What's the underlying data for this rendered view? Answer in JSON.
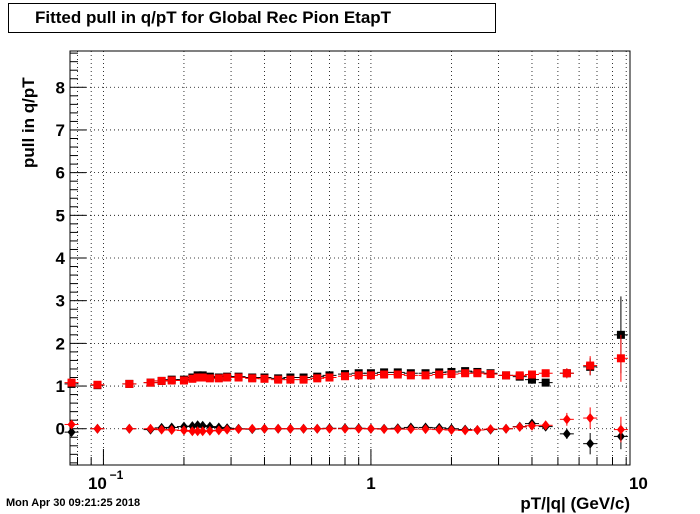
{
  "chart_data": {
    "type": "scatter",
    "title": "Fitted pull in q/pT for Global Rec Pion EtapT",
    "xlabel": "pT/|q| (GeV/c)",
    "ylabel": "pull in q/pT",
    "xscale": "log",
    "xlim": [
      0.075,
      9.3
    ],
    "ylim": [
      -0.85,
      8.85
    ],
    "x_ticks": [
      {
        "value": 0.1,
        "label": "10",
        "exp": "−1"
      },
      {
        "value": 1,
        "label": "1"
      },
      {
        "value": 10,
        "label": "10"
      }
    ],
    "y_ticks": [
      0,
      1,
      2,
      3,
      4,
      5,
      6,
      7,
      8
    ],
    "grid": true,
    "series": [
      {
        "marker": "square",
        "color": "#000000",
        "points": [
          {
            "x": 0.076,
            "y": 1.05,
            "err": 0.05
          },
          {
            "x": 0.095,
            "y": 1.02,
            "err": 0.04
          },
          {
            "x": 0.125,
            "y": 1.05,
            "err": 0.03
          },
          {
            "x": 0.15,
            "y": 1.08,
            "err": 0.03
          },
          {
            "x": 0.165,
            "y": 1.12,
            "err": 0.03
          },
          {
            "x": 0.18,
            "y": 1.15,
            "err": 0.03
          },
          {
            "x": 0.2,
            "y": 1.15,
            "err": 0.02
          },
          {
            "x": 0.215,
            "y": 1.2,
            "err": 0.02
          },
          {
            "x": 0.225,
            "y": 1.25,
            "err": 0.02
          },
          {
            "x": 0.235,
            "y": 1.25,
            "err": 0.02
          },
          {
            "x": 0.25,
            "y": 1.22,
            "err": 0.02
          },
          {
            "x": 0.27,
            "y": 1.2,
            "err": 0.02
          },
          {
            "x": 0.29,
            "y": 1.22,
            "err": 0.02
          },
          {
            "x": 0.32,
            "y": 1.22,
            "err": 0.02
          },
          {
            "x": 0.36,
            "y": 1.2,
            "err": 0.02
          },
          {
            "x": 0.4,
            "y": 1.2,
            "err": 0.02
          },
          {
            "x": 0.45,
            "y": 1.18,
            "err": 0.02
          },
          {
            "x": 0.5,
            "y": 1.2,
            "err": 0.02
          },
          {
            "x": 0.56,
            "y": 1.2,
            "err": 0.02
          },
          {
            "x": 0.63,
            "y": 1.22,
            "err": 0.02
          },
          {
            "x": 0.7,
            "y": 1.25,
            "err": 0.02
          },
          {
            "x": 0.8,
            "y": 1.28,
            "err": 0.02
          },
          {
            "x": 0.9,
            "y": 1.3,
            "err": 0.02
          },
          {
            "x": 1.0,
            "y": 1.3,
            "err": 0.02
          },
          {
            "x": 1.12,
            "y": 1.32,
            "err": 0.02
          },
          {
            "x": 1.26,
            "y": 1.32,
            "err": 0.02
          },
          {
            "x": 1.41,
            "y": 1.3,
            "err": 0.02
          },
          {
            "x": 1.6,
            "y": 1.3,
            "err": 0.02
          },
          {
            "x": 1.8,
            "y": 1.32,
            "err": 0.02
          },
          {
            "x": 2.0,
            "y": 1.33,
            "err": 0.03
          },
          {
            "x": 2.25,
            "y": 1.35,
            "err": 0.03
          },
          {
            "x": 2.5,
            "y": 1.33,
            "err": 0.03
          },
          {
            "x": 2.8,
            "y": 1.3,
            "err": 0.04
          },
          {
            "x": 3.2,
            "y": 1.25,
            "err": 0.05
          },
          {
            "x": 3.6,
            "y": 1.22,
            "err": 0.06
          },
          {
            "x": 4.0,
            "y": 1.15,
            "err": 0.07
          },
          {
            "x": 4.5,
            "y": 1.08,
            "err": 0.08
          },
          {
            "x": 5.4,
            "y": 1.3,
            "err": 0.1
          },
          {
            "x": 6.6,
            "y": 1.45,
            "err": 0.2
          },
          {
            "x": 8.6,
            "y": 2.2,
            "err": 0.9
          }
        ]
      },
      {
        "marker": "square",
        "color": "#ff0000",
        "points": [
          {
            "x": 0.076,
            "y": 1.08,
            "err": 0.05
          },
          {
            "x": 0.095,
            "y": 1.03,
            "err": 0.04
          },
          {
            "x": 0.125,
            "y": 1.05,
            "err": 0.03
          },
          {
            "x": 0.15,
            "y": 1.08,
            "err": 0.03
          },
          {
            "x": 0.165,
            "y": 1.12,
            "err": 0.03
          },
          {
            "x": 0.18,
            "y": 1.13,
            "err": 0.03
          },
          {
            "x": 0.2,
            "y": 1.13,
            "err": 0.02
          },
          {
            "x": 0.215,
            "y": 1.17,
            "err": 0.02
          },
          {
            "x": 0.225,
            "y": 1.2,
            "err": 0.02
          },
          {
            "x": 0.235,
            "y": 1.2,
            "err": 0.02
          },
          {
            "x": 0.25,
            "y": 1.18,
            "err": 0.02
          },
          {
            "x": 0.27,
            "y": 1.18,
            "err": 0.02
          },
          {
            "x": 0.29,
            "y": 1.2,
            "err": 0.02
          },
          {
            "x": 0.32,
            "y": 1.2,
            "err": 0.02
          },
          {
            "x": 0.36,
            "y": 1.18,
            "err": 0.02
          },
          {
            "x": 0.4,
            "y": 1.17,
            "err": 0.02
          },
          {
            "x": 0.45,
            "y": 1.15,
            "err": 0.02
          },
          {
            "x": 0.5,
            "y": 1.15,
            "err": 0.02
          },
          {
            "x": 0.56,
            "y": 1.15,
            "err": 0.02
          },
          {
            "x": 0.63,
            "y": 1.18,
            "err": 0.02
          },
          {
            "x": 0.7,
            "y": 1.2,
            "err": 0.02
          },
          {
            "x": 0.8,
            "y": 1.23,
            "err": 0.02
          },
          {
            "x": 0.9,
            "y": 1.25,
            "err": 0.02
          },
          {
            "x": 1.0,
            "y": 1.25,
            "err": 0.02
          },
          {
            "x": 1.12,
            "y": 1.27,
            "err": 0.02
          },
          {
            "x": 1.26,
            "y": 1.27,
            "err": 0.02
          },
          {
            "x": 1.41,
            "y": 1.25,
            "err": 0.02
          },
          {
            "x": 1.6,
            "y": 1.25,
            "err": 0.02
          },
          {
            "x": 1.8,
            "y": 1.27,
            "err": 0.02
          },
          {
            "x": 2.0,
            "y": 1.28,
            "err": 0.03
          },
          {
            "x": 2.25,
            "y": 1.3,
            "err": 0.03
          },
          {
            "x": 2.5,
            "y": 1.3,
            "err": 0.03
          },
          {
            "x": 2.8,
            "y": 1.28,
            "err": 0.04
          },
          {
            "x": 3.2,
            "y": 1.25,
            "err": 0.05
          },
          {
            "x": 3.6,
            "y": 1.25,
            "err": 0.06
          },
          {
            "x": 4.0,
            "y": 1.27,
            "err": 0.07
          },
          {
            "x": 4.5,
            "y": 1.3,
            "err": 0.08
          },
          {
            "x": 5.4,
            "y": 1.3,
            "err": 0.12
          },
          {
            "x": 6.6,
            "y": 1.48,
            "err": 0.22
          },
          {
            "x": 8.6,
            "y": 1.65,
            "err": 0.55
          }
        ]
      },
      {
        "marker": "diamond",
        "color": "#000000",
        "points": [
          {
            "x": 0.076,
            "y": -0.08,
            "err": 0.05
          },
          {
            "x": 0.095,
            "y": 0.0,
            "err": 0.04
          },
          {
            "x": 0.125,
            "y": 0.0,
            "err": 0.03
          },
          {
            "x": 0.15,
            "y": -0.02,
            "err": 0.03
          },
          {
            "x": 0.165,
            "y": 0.02,
            "err": 0.03
          },
          {
            "x": 0.18,
            "y": 0.03,
            "err": 0.03
          },
          {
            "x": 0.2,
            "y": 0.05,
            "err": 0.02
          },
          {
            "x": 0.215,
            "y": 0.06,
            "err": 0.02
          },
          {
            "x": 0.225,
            "y": 0.08,
            "err": 0.02
          },
          {
            "x": 0.235,
            "y": 0.07,
            "err": 0.02
          },
          {
            "x": 0.25,
            "y": 0.05,
            "err": 0.02
          },
          {
            "x": 0.27,
            "y": 0.03,
            "err": 0.02
          },
          {
            "x": 0.29,
            "y": 0.01,
            "err": 0.02
          },
          {
            "x": 0.32,
            "y": 0.0,
            "err": 0.02
          },
          {
            "x": 0.36,
            "y": -0.01,
            "err": 0.02
          },
          {
            "x": 0.4,
            "y": 0.0,
            "err": 0.02
          },
          {
            "x": 0.45,
            "y": 0.0,
            "err": 0.02
          },
          {
            "x": 0.5,
            "y": 0.0,
            "err": 0.02
          },
          {
            "x": 0.56,
            "y": 0.0,
            "err": 0.02
          },
          {
            "x": 0.63,
            "y": 0.0,
            "err": 0.02
          },
          {
            "x": 0.7,
            "y": 0.01,
            "err": 0.02
          },
          {
            "x": 0.8,
            "y": 0.01,
            "err": 0.02
          },
          {
            "x": 0.9,
            "y": 0.01,
            "err": 0.02
          },
          {
            "x": 1.0,
            "y": 0.0,
            "err": 0.02
          },
          {
            "x": 1.12,
            "y": 0.0,
            "err": 0.02
          },
          {
            "x": 1.26,
            "y": 0.01,
            "err": 0.02
          },
          {
            "x": 1.41,
            "y": 0.03,
            "err": 0.02
          },
          {
            "x": 1.6,
            "y": 0.03,
            "err": 0.02
          },
          {
            "x": 1.8,
            "y": 0.02,
            "err": 0.02
          },
          {
            "x": 2.0,
            "y": 0.0,
            "err": 0.03
          },
          {
            "x": 2.25,
            "y": -0.02,
            "err": 0.03
          },
          {
            "x": 2.5,
            "y": -0.03,
            "err": 0.03
          },
          {
            "x": 2.8,
            "y": -0.02,
            "err": 0.04
          },
          {
            "x": 3.2,
            "y": 0.0,
            "err": 0.05
          },
          {
            "x": 3.6,
            "y": 0.05,
            "err": 0.06
          },
          {
            "x": 4.0,
            "y": 0.12,
            "err": 0.08
          },
          {
            "x": 4.5,
            "y": 0.05,
            "err": 0.1
          },
          {
            "x": 5.4,
            "y": -0.12,
            "err": 0.12
          },
          {
            "x": 6.6,
            "y": -0.35,
            "err": 0.25
          },
          {
            "x": 8.6,
            "y": -0.18,
            "err": 0.3
          }
        ]
      },
      {
        "marker": "diamond",
        "color": "#ff0000",
        "points": [
          {
            "x": 0.076,
            "y": 0.1,
            "err": 0.05
          },
          {
            "x": 0.095,
            "y": 0.0,
            "err": 0.04
          },
          {
            "x": 0.125,
            "y": 0.0,
            "err": 0.03
          },
          {
            "x": 0.15,
            "y": 0.0,
            "err": 0.03
          },
          {
            "x": 0.165,
            "y": -0.02,
            "err": 0.03
          },
          {
            "x": 0.18,
            "y": -0.03,
            "err": 0.03
          },
          {
            "x": 0.2,
            "y": -0.04,
            "err": 0.02
          },
          {
            "x": 0.215,
            "y": -0.06,
            "err": 0.02
          },
          {
            "x": 0.225,
            "y": -0.06,
            "err": 0.02
          },
          {
            "x": 0.235,
            "y": -0.06,
            "err": 0.02
          },
          {
            "x": 0.25,
            "y": -0.05,
            "err": 0.02
          },
          {
            "x": 0.27,
            "y": -0.04,
            "err": 0.02
          },
          {
            "x": 0.29,
            "y": -0.02,
            "err": 0.02
          },
          {
            "x": 0.32,
            "y": -0.01,
            "err": 0.02
          },
          {
            "x": 0.36,
            "y": 0.0,
            "err": 0.02
          },
          {
            "x": 0.4,
            "y": 0.0,
            "err": 0.02
          },
          {
            "x": 0.45,
            "y": 0.0,
            "err": 0.02
          },
          {
            "x": 0.5,
            "y": 0.0,
            "err": 0.02
          },
          {
            "x": 0.56,
            "y": 0.0,
            "err": 0.02
          },
          {
            "x": 0.63,
            "y": 0.0,
            "err": 0.02
          },
          {
            "x": 0.7,
            "y": 0.0,
            "err": 0.02
          },
          {
            "x": 0.8,
            "y": 0.0,
            "err": 0.02
          },
          {
            "x": 0.9,
            "y": 0.0,
            "err": 0.02
          },
          {
            "x": 1.0,
            "y": 0.0,
            "err": 0.02
          },
          {
            "x": 1.12,
            "y": -0.01,
            "err": 0.02
          },
          {
            "x": 1.26,
            "y": -0.01,
            "err": 0.02
          },
          {
            "x": 1.41,
            "y": -0.01,
            "err": 0.02
          },
          {
            "x": 1.6,
            "y": -0.01,
            "err": 0.02
          },
          {
            "x": 1.8,
            "y": -0.02,
            "err": 0.02
          },
          {
            "x": 2.0,
            "y": -0.03,
            "err": 0.03
          },
          {
            "x": 2.25,
            "y": -0.04,
            "err": 0.03
          },
          {
            "x": 2.5,
            "y": -0.03,
            "err": 0.03
          },
          {
            "x": 2.8,
            "y": -0.01,
            "err": 0.04
          },
          {
            "x": 3.2,
            "y": 0.0,
            "err": 0.05
          },
          {
            "x": 3.6,
            "y": 0.04,
            "err": 0.06
          },
          {
            "x": 4.0,
            "y": 0.07,
            "err": 0.08
          },
          {
            "x": 4.5,
            "y": 0.08,
            "err": 0.1
          },
          {
            "x": 5.4,
            "y": 0.22,
            "err": 0.15
          },
          {
            "x": 6.6,
            "y": 0.25,
            "err": 0.25
          },
          {
            "x": 8.6,
            "y": -0.02,
            "err": 0.3
          }
        ]
      }
    ]
  },
  "footer": {
    "timestamp": "Mon Apr 30 09:21:25 2018"
  }
}
